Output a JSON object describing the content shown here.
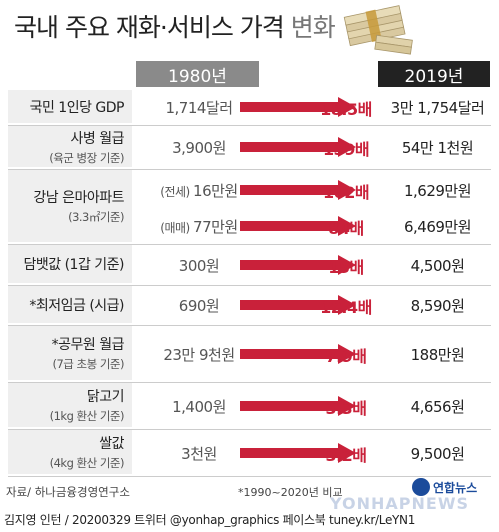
{
  "title_main": "국내 주요 재화·서비스 가격",
  "title_sub": " 변화",
  "year_start": "1980년",
  "year_end": "2019년",
  "colors": {
    "arrow": "#c9213a",
    "header_1980": "#8a8a8a",
    "header_2019": "#222222"
  },
  "rows": [
    {
      "name": "국민 1인당 GDP",
      "sub": "",
      "lines": [
        {
          "tag": "",
          "v1980": "1,714달러",
          "mult": "18.5배",
          "v2019": "3만 1,754달러"
        }
      ]
    },
    {
      "name": "사병 월급",
      "sub": "(육군 병장 기준)",
      "lines": [
        {
          "tag": "",
          "v1980": "3,900원",
          "mult": "139배",
          "v2019": "54만 1천원"
        }
      ]
    },
    {
      "name": "강남 은마아파트",
      "sub": "(3.3㎡기준)",
      "lines": [
        {
          "tag": "(전세)",
          "v1980": "16만원",
          "mult": "102배",
          "v2019": "1,629만원"
        },
        {
          "tag": "(매매)",
          "v1980": "77만원",
          "mult": "84배",
          "v2019": "6,469만원"
        }
      ]
    },
    {
      "name": "담뱃값 (1갑 기준)",
      "sub": "",
      "lines": [
        {
          "tag": "",
          "v1980": "300원",
          "mult": "15배",
          "v2019": "4,500원"
        }
      ]
    },
    {
      "name": "*최저임금 (시급)",
      "sub": "",
      "lines": [
        {
          "tag": "",
          "v1980": "690원",
          "mult": "12.4배",
          "v2019": "8,590원"
        }
      ]
    },
    {
      "name": "*공무원 월급",
      "sub": "(7급 초봉 기준)",
      "lines": [
        {
          "tag": "",
          "v1980": "23만 9천원",
          "mult": "7.9배",
          "v2019": "188만원"
        }
      ]
    },
    {
      "name": "닭고기",
      "sub": "(1kg 환산 기준)",
      "lines": [
        {
          "tag": "",
          "v1980": "1,400원",
          "mult": "3.3배",
          "v2019": "4,656원"
        }
      ]
    },
    {
      "name": "쌀값",
      "sub": "(4kg 환산 기준)",
      "lines": [
        {
          "tag": "",
          "v1980": "3천원",
          "mult": "3.2배",
          "v2019": "9,500원"
        }
      ]
    }
  ],
  "footer_source": "자료/ 하나금융경영연구소",
  "footer_note": "*1990~2020년 비교",
  "logo_text": "연합뉴스",
  "watermark": "YONHAPNEWS",
  "credit": "김지영 인턴 / 20200329 트위터 @yonhap_graphics 페이스북 tuney.kr/LeYN1"
}
